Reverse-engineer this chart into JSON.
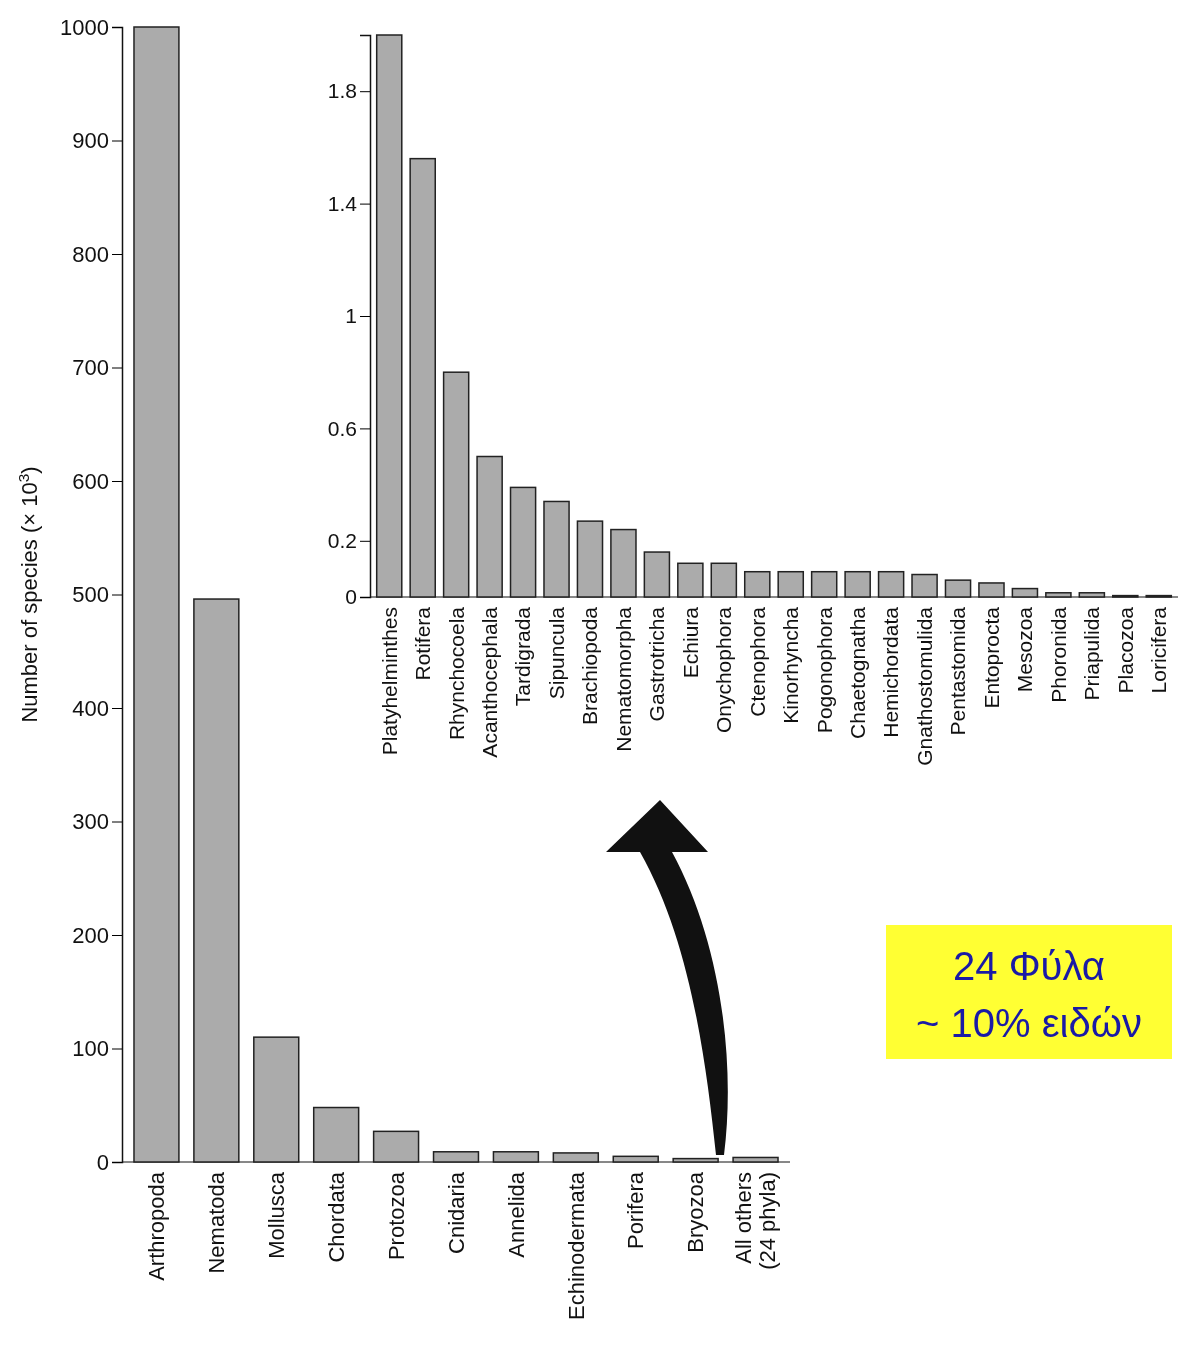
{
  "chart_data": [
    {
      "type": "bar",
      "ylabel": "Number of species (× 10$^{3}$)",
      "categories": [
        "Arthropoda",
        "Nematoda",
        "Mollusca",
        "Chordata",
        "Protozoa",
        "Cnidaria",
        "Annelida",
        "Echinodermata",
        "Porifera",
        "Bryozoa",
        "All others (24 phyla)"
      ],
      "values": [
        1000,
        496,
        110,
        48,
        27,
        9,
        9,
        8,
        5,
        3,
        4
      ],
      "color": "#ababab",
      "ylim": [
        0,
        1000
      ],
      "yticks": [
        0,
        100,
        200,
        300,
        400,
        500,
        600,
        700,
        800,
        900,
        1000
      ],
      "annotations": [
        "24 Φύλα",
        "~ 10% ειδών"
      ]
    },
    {
      "type": "bar",
      "categories": [
        "Platyhelminthes",
        "Rotifera",
        "Rhynchocoela",
        "Acanthocephala",
        "Tardigrada",
        "Sipuncula",
        "Brachiopoda",
        "Nematomorpha",
        "Gastrotricha",
        "Echiura",
        "Onychophora",
        "Ctenophora",
        "Kinorhyncha",
        "Pogonophora",
        "Chaetognatha",
        "Hemichordata",
        "Gnathostomulida",
        "Pentastomida",
        "Entoprocta",
        "Mesozoa",
        "Phoronida",
        "Priapulida",
        "Placozoa",
        "Loricifera"
      ],
      "values": [
        2.0,
        1.56,
        0.8,
        0.5,
        0.39,
        0.34,
        0.27,
        0.24,
        0.16,
        0.12,
        0.12,
        0.09,
        0.09,
        0.09,
        0.09,
        0.09,
        0.08,
        0.06,
        0.05,
        0.03,
        0.015,
        0.015,
        0.005,
        0.005
      ],
      "color": "#ababab",
      "ylim": [
        0,
        2.0
      ],
      "yticks": [
        0,
        0.2,
        0.6,
        1.0,
        1.4,
        1.8
      ]
    }
  ]
}
